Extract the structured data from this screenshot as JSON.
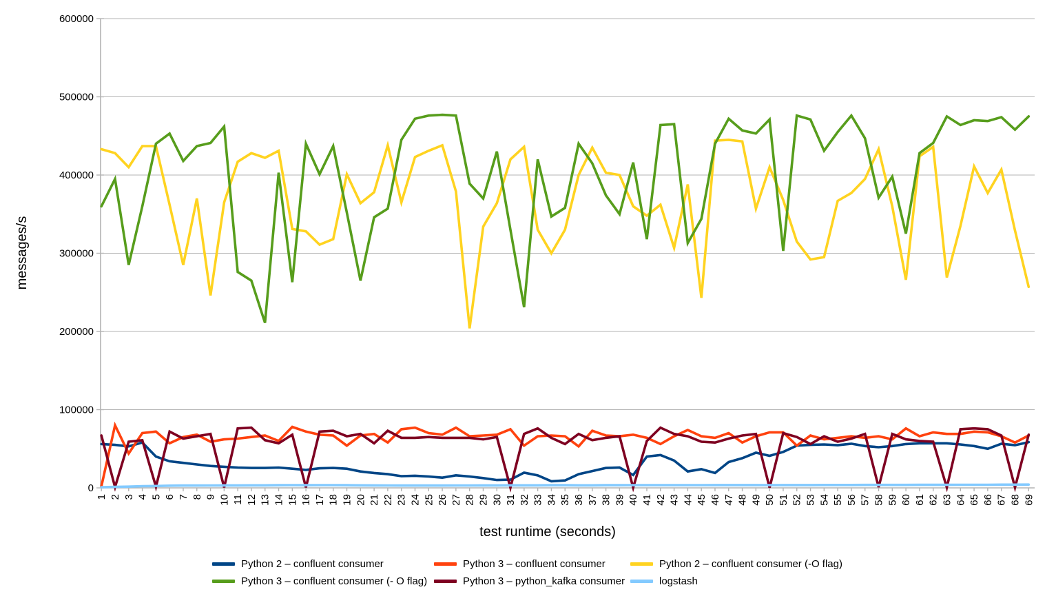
{
  "chart_data": {
    "type": "line",
    "title": "",
    "xlabel": "test runtime (seconds)",
    "ylabel": "messages/s",
    "grid": true,
    "legend_position": "bottom",
    "ylim": [
      0,
      600000
    ],
    "yticks": [
      0,
      100000,
      200000,
      300000,
      400000,
      500000,
      600000
    ],
    "x": [
      1,
      2,
      3,
      4,
      5,
      6,
      7,
      8,
      9,
      10,
      11,
      12,
      13,
      14,
      15,
      16,
      17,
      18,
      19,
      20,
      21,
      22,
      23,
      24,
      25,
      26,
      27,
      28,
      29,
      30,
      31,
      32,
      33,
      34,
      35,
      36,
      37,
      38,
      39,
      40,
      41,
      42,
      43,
      44,
      45,
      46,
      47,
      48,
      49,
      50,
      51,
      52,
      53,
      54,
      55,
      56,
      57,
      58,
      59,
      60,
      61,
      62,
      63,
      64,
      65,
      66,
      67,
      68,
      69
    ],
    "series": [
      {
        "name": "Python 2 – confluent consumer",
        "color": "#004586",
        "values": [
          56000,
          55000,
          53000,
          58000,
          40000,
          34000,
          32000,
          30000,
          28000,
          27000,
          26000,
          25500,
          25500,
          26000,
          24500,
          23000,
          25000,
          25500,
          24500,
          21000,
          19000,
          17500,
          15000,
          15500,
          14500,
          13000,
          16000,
          14500,
          12500,
          10000,
          10500,
          19500,
          16000,
          8500,
          9500,
          17500,
          21500,
          25500,
          26000,
          16500,
          40000,
          42000,
          35000,
          21000,
          24000,
          19000,
          33000,
          38000,
          45000,
          41000,
          46000,
          54000,
          55000,
          55500,
          54500,
          56500,
          53500,
          52000,
          53500,
          56000,
          57000,
          57000,
          57000,
          55500,
          53500,
          50000,
          56500,
          54500,
          58500
        ]
      },
      {
        "name": "Python 3 – confluent consumer",
        "color": "#ff420e",
        "values": [
          2000,
          80000,
          44000,
          70000,
          72000,
          57000,
          65000,
          68000,
          59000,
          62000,
          63000,
          65000,
          67000,
          60000,
          78000,
          72000,
          68000,
          67000,
          54000,
          67000,
          69000,
          58000,
          75000,
          77000,
          70000,
          68000,
          77000,
          66000,
          67000,
          68000,
          75000,
          54000,
          66000,
          67000,
          66000,
          53000,
          73000,
          67000,
          66000,
          68000,
          64000,
          56000,
          66000,
          74000,
          66000,
          64000,
          70000,
          58000,
          66000,
          71000,
          71000,
          54000,
          67000,
          62000,
          64000,
          66000,
          64000,
          66000,
          62000,
          76000,
          66000,
          71000,
          69000,
          69000,
          72000,
          71000,
          66000,
          58000,
          67000
        ]
      },
      {
        "name": "Python 2 – confluent consumer (-O flag)",
        "color": "#ffd320",
        "values": [
          433000,
          428000,
          410000,
          437000,
          437000,
          362000,
          285000,
          370000,
          246000,
          365000,
          417000,
          428000,
          422000,
          431000,
          331000,
          328000,
          311000,
          318000,
          401000,
          364000,
          378000,
          438000,
          365000,
          423000,
          431000,
          438000,
          379000,
          204000,
          334000,
          364000,
          420000,
          436000,
          330000,
          300000,
          330000,
          400000,
          435000,
          403000,
          400000,
          360000,
          348000,
          362000,
          307000,
          388000,
          243000,
          444000,
          445000,
          443000,
          357000,
          410000,
          368000,
          315000,
          292000,
          295000,
          367000,
          377000,
          395000,
          433000,
          360000,
          266000,
          424000,
          436000,
          269000,
          335000,
          411000,
          377000,
          407000,
          329000,
          257000
        ]
      },
      {
        "name": "Python 3 – confluent consumer (- O flag)",
        "color": "#579d1c",
        "values": [
          360000,
          395000,
          285000,
          360000,
          440000,
          453000,
          418000,
          437000,
          441000,
          462000,
          276000,
          265000,
          211000,
          403000,
          263000,
          440000,
          401000,
          437000,
          352000,
          265000,
          346000,
          357000,
          445000,
          472000,
          476000,
          477000,
          476000,
          389000,
          370000,
          430000,
          330000,
          231000,
          420000,
          347000,
          358000,
          440000,
          415000,
          374000,
          350000,
          416000,
          318000,
          464000,
          465000,
          313000,
          344000,
          440000,
          472000,
          457000,
          453000,
          471000,
          303000,
          476000,
          471000,
          431000,
          455000,
          476000,
          447000,
          371000,
          398000,
          325000,
          428000,
          441000,
          475000,
          464000,
          470000,
          469000,
          474000,
          458000,
          475000
        ]
      },
      {
        "name": "Python 3 – python_kafka consumer",
        "color": "#7e0021",
        "values": [
          67000,
          1000,
          59000,
          61000,
          1500,
          72000,
          63000,
          66000,
          69000,
          600,
          76000,
          77000,
          61000,
          57000,
          68000,
          600,
          72000,
          73000,
          66000,
          69000,
          57000,
          73000,
          64000,
          64000,
          65000,
          64000,
          64000,
          64000,
          62000,
          65000,
          300,
          69000,
          76000,
          64000,
          56000,
          69000,
          61000,
          64000,
          66000,
          300,
          60000,
          77000,
          69000,
          66000,
          59000,
          58000,
          63000,
          67000,
          69000,
          300,
          70000,
          65000,
          56000,
          66000,
          59000,
          63000,
          69000,
          1000,
          69000,
          62000,
          60000,
          59000,
          500,
          75000,
          76000,
          75000,
          67000,
          500,
          68000
        ]
      },
      {
        "name": "logstash",
        "color": "#83caff",
        "values": [
          800,
          1200,
          1600,
          2200,
          2400,
          2800,
          3000,
          3000,
          3100,
          3200,
          3200,
          3300,
          3300,
          3400,
          3500,
          3400,
          3500,
          3500,
          3400,
          3300,
          3200,
          3100,
          3000,
          3000,
          3000,
          3000,
          3100,
          3100,
          3200,
          3200,
          3300,
          3300,
          3300,
          3400,
          3400,
          3300,
          3300,
          3400,
          3400,
          3500,
          3500,
          3500,
          3500,
          3500,
          3500,
          3600,
          3600,
          3600,
          3600,
          3500,
          3600,
          3600,
          3600,
          3700,
          3700,
          3700,
          3800,
          3800,
          3800,
          3800,
          3900,
          3900,
          3900,
          4000,
          4000,
          4000,
          4100,
          4100,
          4200
        ]
      }
    ]
  }
}
